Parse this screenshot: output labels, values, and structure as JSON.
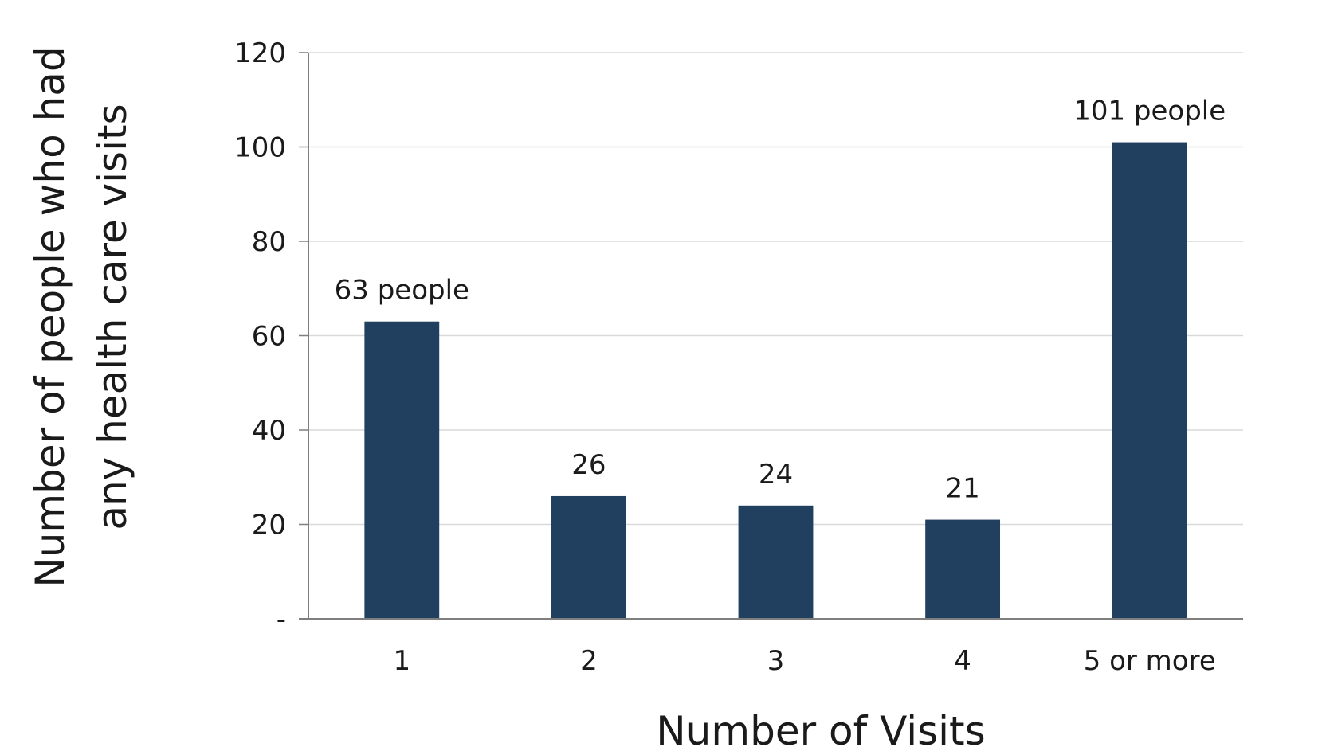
{
  "chart_data": {
    "type": "bar",
    "categories": [
      "1",
      "2",
      "3",
      "4",
      "5 or more"
    ],
    "values": [
      63,
      26,
      24,
      21,
      101
    ],
    "data_labels": [
      "63 people",
      "26",
      "24",
      "21",
      "101 people"
    ],
    "xlabel": "Number of Visits",
    "ylabel_lines": [
      "Number of people who had",
      "any health care visits"
    ],
    "ylim": [
      0,
      120
    ],
    "yticks": [
      0,
      20,
      40,
      60,
      80,
      100,
      120
    ],
    "ytick_labels": [
      "-",
      "20",
      "40",
      "60",
      "80",
      "100",
      "120"
    ],
    "grid": true,
    "bar_color": "#213f5e",
    "grid_color": "#d9d9d9",
    "axis_color": "#7f7f7f"
  }
}
